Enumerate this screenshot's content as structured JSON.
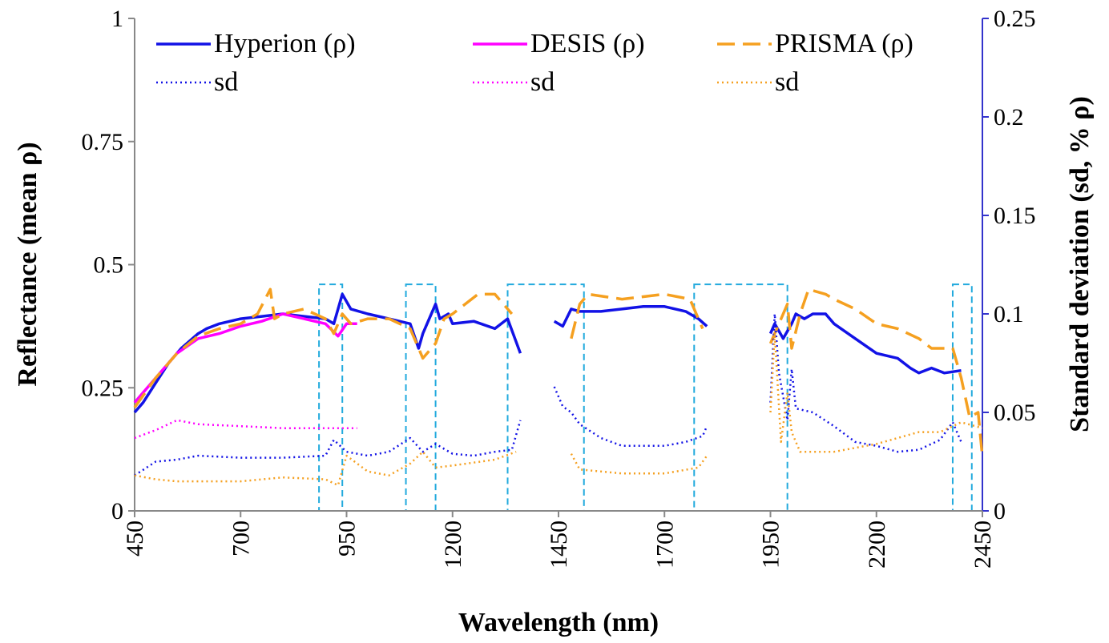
{
  "chart_data": {
    "type": "line",
    "xlabel": "Wavelength (nm)",
    "ylabel": "Reflectance (mean ρ)",
    "y2label": "Standard deviation (sd, % ρ)",
    "xlim": [
      450,
      2450
    ],
    "xticks": [
      450,
      700,
      950,
      1200,
      1450,
      1700,
      1950,
      2200,
      2450
    ],
    "ylim": [
      0,
      1
    ],
    "yticks": [
      0,
      0.25,
      0.5,
      0.75,
      1
    ],
    "y2lim": [
      0,
      0.25
    ],
    "y2ticks": [
      0,
      0.05,
      0.1,
      0.15,
      0.2,
      0.25
    ],
    "highlight_ranges": [
      [
        885,
        940,
        0.46
      ],
      [
        1090,
        1160,
        0.46
      ],
      [
        1330,
        1510,
        0.46
      ],
      [
        1770,
        1990,
        0.46
      ],
      [
        2380,
        2425,
        0.46
      ]
    ],
    "highlight_color": "#22aadd",
    "series": [
      {
        "name": "Hyperion (ρ)",
        "color": "#1212e6",
        "dash": "solid",
        "x": [
          450,
          470,
          500,
          530,
          560,
          600,
          620,
          650,
          700,
          750,
          800,
          850,
          900,
          920,
          940,
          960,
          1000,
          1050,
          1100,
          1120,
          1130,
          1150,
          1160,
          1170,
          1190,
          1200,
          1250,
          1300,
          1330,
          1360,
          1400,
          1440,
          1460,
          1480,
          1500,
          1550,
          1600,
          1650,
          1700,
          1750,
          1780,
          1800,
          1870,
          1950,
          1960,
          1980,
          2000,
          2010,
          2030,
          2050,
          2080,
          2100,
          2150,
          2200,
          2250,
          2280,
          2300,
          2330,
          2360,
          2400
        ],
        "values": [
          0.2,
          0.22,
          0.26,
          0.3,
          0.33,
          0.36,
          0.37,
          0.38,
          0.39,
          0.395,
          0.4,
          0.395,
          0.39,
          0.38,
          0.44,
          0.41,
          0.4,
          0.39,
          0.38,
          0.33,
          0.36,
          0.4,
          0.42,
          0.39,
          0.4,
          0.38,
          0.385,
          0.37,
          0.39,
          0.32,
          null,
          0.385,
          0.375,
          0.41,
          0.405,
          0.405,
          0.41,
          0.415,
          0.415,
          0.405,
          0.39,
          0.375,
          null,
          0.36,
          0.38,
          0.35,
          0.38,
          0.4,
          0.39,
          0.4,
          0.4,
          0.38,
          0.35,
          0.32,
          0.31,
          0.29,
          0.28,
          0.29,
          0.28,
          0.285
        ]
      },
      {
        "name": "DESIS (ρ)",
        "color": "#ff00ff",
        "dash": "solid",
        "x": [
          450,
          500,
          550,
          600,
          650,
          700,
          750,
          800,
          850,
          900,
          930,
          950,
          975
        ],
        "values": [
          0.22,
          0.27,
          0.32,
          0.35,
          0.36,
          0.375,
          0.385,
          0.4,
          0.39,
          0.38,
          0.355,
          0.38,
          0.38
        ]
      },
      {
        "name": "PRISMA (ρ)",
        "color": "#f5a020",
        "dash": "dashed",
        "x": [
          450,
          500,
          550,
          600,
          650,
          700,
          740,
          770,
          780,
          800,
          850,
          900,
          920,
          940,
          960,
          1000,
          1050,
          1100,
          1130,
          1160,
          1180,
          1200,
          1230,
          1260,
          1300,
          1340,
          1400,
          1480,
          1500,
          1520,
          1600,
          1700,
          1760,
          1790,
          1870,
          1950,
          1970,
          1990,
          2000,
          2020,
          2040,
          2080,
          2100,
          2150,
          2200,
          2250,
          2300,
          2330,
          2380,
          2400,
          2420,
          2440,
          2450
        ],
        "values": [
          0.21,
          0.27,
          0.32,
          0.355,
          0.37,
          0.38,
          0.4,
          0.45,
          0.39,
          0.4,
          0.41,
          0.39,
          0.36,
          0.4,
          0.38,
          0.39,
          0.39,
          0.37,
          0.31,
          0.34,
          0.39,
          0.4,
          0.42,
          0.44,
          0.44,
          0.4,
          null,
          0.35,
          0.42,
          0.44,
          0.43,
          0.44,
          0.43,
          0.37,
          null,
          0.34,
          0.38,
          0.42,
          0.33,
          0.4,
          0.45,
          0.44,
          0.43,
          0.41,
          0.38,
          0.37,
          0.35,
          0.33,
          0.33,
          0.27,
          0.19,
          0.2,
          0.11
        ]
      },
      {
        "name": "sd",
        "color": "#1212e6",
        "dash": "dotted",
        "axis": "y2",
        "x": [
          450,
          500,
          550,
          600,
          700,
          800,
          900,
          920,
          950,
          1000,
          1050,
          1100,
          1130,
          1160,
          1200,
          1250,
          1300,
          1340,
          1360,
          1400,
          1440,
          1460,
          1480,
          1500,
          1550,
          1600,
          1700,
          1750,
          1790,
          1800,
          1870,
          1950,
          1960,
          1970,
          1990,
          2000,
          2010,
          2050,
          2100,
          2150,
          2200,
          2250,
          2300,
          2350,
          2380,
          2400
        ],
        "values": [
          0.018,
          0.025,
          0.026,
          0.028,
          0.027,
          0.027,
          0.028,
          0.036,
          0.03,
          0.028,
          0.03,
          0.037,
          0.03,
          0.034,
          0.029,
          0.028,
          0.03,
          0.031,
          0.046,
          null,
          0.063,
          0.053,
          0.05,
          0.044,
          0.037,
          0.033,
          0.033,
          0.035,
          0.038,
          0.043,
          null,
          0.055,
          0.1,
          0.07,
          0.046,
          0.072,
          0.052,
          0.05,
          0.043,
          0.035,
          0.033,
          0.03,
          0.031,
          0.036,
          0.045,
          0.035
        ]
      },
      {
        "name": "sd",
        "color": "#ff00ff",
        "dash": "dotted",
        "axis": "y2",
        "x": [
          450,
          500,
          550,
          600,
          700,
          800,
          900,
          975
        ],
        "values": [
          0.037,
          0.041,
          0.046,
          0.044,
          0.043,
          0.042,
          0.042,
          0.042
        ]
      },
      {
        "name": "sd",
        "color": "#f5a020",
        "dash": "dotted",
        "axis": "y2",
        "x": [
          450,
          500,
          550,
          700,
          800,
          900,
          930,
          950,
          1000,
          1050,
          1100,
          1130,
          1160,
          1200,
          1300,
          1350,
          1400,
          1480,
          1500,
          1600,
          1700,
          1780,
          1800,
          1870,
          1950,
          1960,
          1975,
          1990,
          2000,
          2020,
          2100,
          2200,
          2300,
          2350,
          2400,
          2450
        ],
        "values": [
          0.018,
          0.016,
          0.015,
          0.015,
          0.017,
          0.016,
          0.013,
          0.028,
          0.02,
          0.018,
          0.024,
          0.03,
          0.022,
          0.023,
          0.026,
          0.03,
          null,
          0.029,
          0.021,
          0.019,
          0.019,
          0.022,
          0.028,
          null,
          0.05,
          0.09,
          0.035,
          0.06,
          0.04,
          0.03,
          0.03,
          0.034,
          0.04,
          0.04,
          0.045,
          0.042
        ]
      }
    ]
  }
}
